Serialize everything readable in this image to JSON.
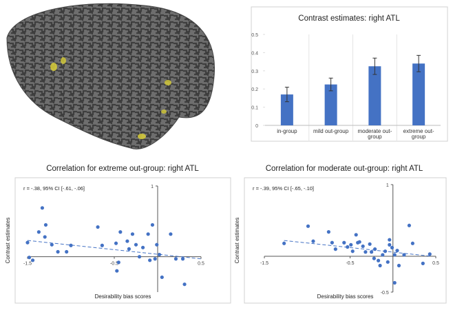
{
  "chart_data": [
    {
      "type": "bar",
      "title": "Contrast estimates: right ATL",
      "categories": [
        "in-group",
        "mild out-group",
        "moderate out-group",
        "extreme out-group"
      ],
      "values": [
        0.17,
        0.225,
        0.325,
        0.34
      ],
      "errors": [
        0.04,
        0.035,
        0.045,
        0.045
      ],
      "color": "#4472c4",
      "ylim": [
        0,
        0.5
      ],
      "yticks": [
        0,
        0.1,
        0.2,
        0.3,
        0.4,
        0.5
      ]
    },
    {
      "type": "scatter",
      "title": "Correlation for extreme out-group: right ATL",
      "annotation": "r = -.38, 95% CI [-.61, -.06]",
      "xlabel": "Desirability bias scores",
      "ylabel": "Contrast estimates",
      "color": "#4472c4",
      "x": [
        -1.5,
        -1.48,
        -1.44,
        -1.37,
        -1.33,
        -1.29,
        -1.3,
        -1.22,
        -1.15,
        -1.05,
        -1.0,
        -0.69,
        -0.64,
        -0.43,
        -0.48,
        -0.45,
        -0.47,
        -0.35,
        -0.33,
        -0.29,
        -0.25,
        -0.21,
        -0.17,
        -0.11,
        -0.09,
        -0.06,
        -0.01,
        0.02,
        0.05,
        0.15,
        0.21,
        0.29,
        0.31,
        -0.03
      ],
      "y": [
        0.2,
        -0.01,
        -0.05,
        0.35,
        0.69,
        0.45,
        0.28,
        0.17,
        0.07,
        0.07,
        0.16,
        0.42,
        0.16,
        0.35,
        0.19,
        -0.08,
        -0.2,
        0.22,
        0.11,
        0.32,
        0.17,
        0,
        0.13,
        0.32,
        -0.05,
        0.45,
        0.17,
        0.03,
        -0.29,
        0.32,
        -0.03,
        -0.03,
        -0.39,
        -0.03
      ],
      "trend": {
        "x": [
          -1.5,
          0.5
        ],
        "y": [
          0.23,
          -0.03
        ]
      },
      "xlim": [
        -1.5,
        0.5
      ],
      "xticks": [
        -1.5,
        -0.5,
        0.5
      ],
      "ylim": [
        -0.5,
        1
      ],
      "yticks": [
        1
      ]
    },
    {
      "type": "scatter",
      "title": "Correlation for moderate out-group: right ATL",
      "annotation": "r = -.39, 95% CI [-.65, -.10]",
      "xlabel": "Desirability bias scores",
      "ylabel": "Contrast estimates",
      "color": "#4472c4",
      "x": [
        -1.27,
        -0.99,
        -0.93,
        -0.75,
        -0.71,
        -0.67,
        -0.57,
        -0.53,
        -0.49,
        -0.47,
        -0.43,
        -0.41,
        -0.39,
        -0.35,
        -0.32,
        -0.27,
        -0.25,
        -0.22,
        -0.21,
        -0.17,
        -0.15,
        -0.12,
        -0.09,
        -0.06,
        -0.04,
        -0.01,
        0.02,
        0.05,
        0.07,
        0.02,
        0.13,
        0.19,
        0.23,
        0.35,
        0.43,
        -0.04
      ],
      "y": [
        0.18,
        0.42,
        0.21,
        0.34,
        0.19,
        0.1,
        0.19,
        0.13,
        0.16,
        0.07,
        0.3,
        0.19,
        0.2,
        0.14,
        0.06,
        0.17,
        0.06,
        -0.03,
        0.1,
        -0.06,
        -0.13,
        0.02,
        0.07,
        -0.08,
        0.23,
        0.12,
        0.02,
        0.08,
        -0.13,
        -0.37,
        0.02,
        0.43,
        0.18,
        -0.1,
        0.03,
        0.16
      ],
      "trend": {
        "x": [
          -1.27,
          0.45
        ],
        "y": [
          0.22,
          0.0
        ]
      },
      "xlim": [
        -1.5,
        0.5
      ],
      "xticks": [
        -1.5,
        -0.5,
        0.5
      ],
      "ylim": [
        -0.5,
        1
      ],
      "yticks": [
        -0.5,
        1
      ]
    }
  ]
}
